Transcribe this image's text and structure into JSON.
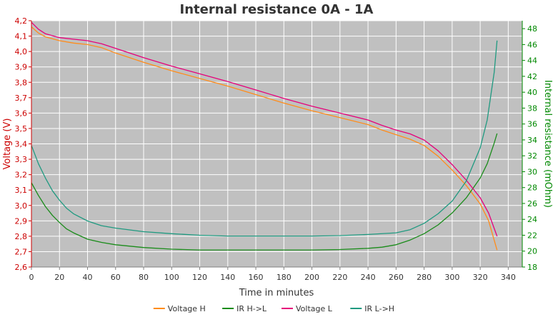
{
  "chart_data": {
    "type": "line",
    "title": "Internal resistance  0A - 1A",
    "xlabel": "Time in minutes",
    "ylabel_left": "Voltage (V)",
    "ylabel_right": "Internal resistance (mOhm)",
    "xlim": [
      0,
      350
    ],
    "ylim_left": [
      2.6,
      4.2
    ],
    "ylim_right": [
      18,
      49
    ],
    "x_ticks": [
      0,
      20,
      40,
      60,
      80,
      100,
      120,
      140,
      160,
      180,
      200,
      220,
      240,
      260,
      280,
      300,
      320,
      340
    ],
    "left_ticks": [
      "2,6",
      "2,7",
      "2,8",
      "2,9",
      "3,0",
      "3,1",
      "3,2",
      "3,3",
      "3,4",
      "3,5",
      "3,6",
      "3,7",
      "3,8",
      "3,9",
      "4,0",
      "4,1",
      "4,2"
    ],
    "right_ticks": [
      18,
      20,
      22,
      24,
      26,
      28,
      30,
      32,
      34,
      36,
      38,
      40,
      42,
      44,
      46,
      48
    ],
    "grid": true,
    "legend_position": "bottom",
    "colors": {
      "left_axis": "#cc0000",
      "right_axis": "#008800",
      "plot_bg": "#c0c0c0",
      "grid": "#ffffff"
    },
    "series": [
      {
        "name": "Voltage H",
        "axis": "left",
        "color": "#ff8c1a",
        "points": [
          [
            0,
            4.16
          ],
          [
            5,
            4.12
          ],
          [
            10,
            4.095
          ],
          [
            20,
            4.07
          ],
          [
            30,
            4.055
          ],
          [
            40,
            4.045
          ],
          [
            50,
            4.025
          ],
          [
            60,
            3.99
          ],
          [
            80,
            3.93
          ],
          [
            100,
            3.875
          ],
          [
            120,
            3.825
          ],
          [
            140,
            3.775
          ],
          [
            160,
            3.72
          ],
          [
            180,
            3.665
          ],
          [
            200,
            3.615
          ],
          [
            220,
            3.57
          ],
          [
            240,
            3.525
          ],
          [
            250,
            3.49
          ],
          [
            260,
            3.46
          ],
          [
            270,
            3.43
          ],
          [
            280,
            3.39
          ],
          [
            290,
            3.32
          ],
          [
            300,
            3.23
          ],
          [
            310,
            3.13
          ],
          [
            320,
            3.01
          ],
          [
            326,
            2.9
          ],
          [
            332,
            2.71
          ]
        ]
      },
      {
        "name": "IR H->L",
        "axis": "right",
        "color": "#1a8c1a",
        "points": [
          [
            0,
            28.6
          ],
          [
            5,
            27
          ],
          [
            10,
            25.6
          ],
          [
            15,
            24.5
          ],
          [
            20,
            23.6
          ],
          [
            25,
            22.8
          ],
          [
            30,
            22.3
          ],
          [
            40,
            21.5
          ],
          [
            50,
            21.1
          ],
          [
            60,
            20.8
          ],
          [
            80,
            20.45
          ],
          [
            100,
            20.25
          ],
          [
            120,
            20.15
          ],
          [
            140,
            20.15
          ],
          [
            160,
            20.15
          ],
          [
            180,
            20.15
          ],
          [
            200,
            20.15
          ],
          [
            220,
            20.2
          ],
          [
            240,
            20.35
          ],
          [
            250,
            20.5
          ],
          [
            260,
            20.8
          ],
          [
            270,
            21.4
          ],
          [
            280,
            22.2
          ],
          [
            290,
            23.3
          ],
          [
            300,
            24.8
          ],
          [
            310,
            26.7
          ],
          [
            320,
            29.2
          ],
          [
            325,
            31
          ],
          [
            330,
            33.6
          ],
          [
            332,
            34.8
          ]
        ]
      },
      {
        "name": "Voltage L",
        "axis": "left",
        "color": "#e6007a",
        "points": [
          [
            0,
            4.19
          ],
          [
            5,
            4.145
          ],
          [
            10,
            4.115
          ],
          [
            20,
            4.09
          ],
          [
            30,
            4.08
          ],
          [
            40,
            4.07
          ],
          [
            50,
            4.05
          ],
          [
            60,
            4.02
          ],
          [
            80,
            3.96
          ],
          [
            100,
            3.905
          ],
          [
            120,
            3.855
          ],
          [
            140,
            3.805
          ],
          [
            160,
            3.75
          ],
          [
            180,
            3.695
          ],
          [
            200,
            3.645
          ],
          [
            220,
            3.6
          ],
          [
            240,
            3.555
          ],
          [
            250,
            3.52
          ],
          [
            260,
            3.49
          ],
          [
            270,
            3.465
          ],
          [
            280,
            3.425
          ],
          [
            290,
            3.355
          ],
          [
            300,
            3.265
          ],
          [
            310,
            3.165
          ],
          [
            320,
            3.05
          ],
          [
            326,
            2.95
          ],
          [
            332,
            2.8
          ]
        ]
      },
      {
        "name": "IR L->H",
        "axis": "right",
        "color": "#1f9a80",
        "points": [
          [
            0,
            33.3
          ],
          [
            5,
            31
          ],
          [
            10,
            29.2
          ],
          [
            15,
            27.6
          ],
          [
            20,
            26.4
          ],
          [
            25,
            25.4
          ],
          [
            30,
            24.7
          ],
          [
            40,
            23.8
          ],
          [
            50,
            23.2
          ],
          [
            60,
            22.9
          ],
          [
            80,
            22.45
          ],
          [
            100,
            22.2
          ],
          [
            120,
            22
          ],
          [
            140,
            21.9
          ],
          [
            160,
            21.9
          ],
          [
            180,
            21.9
          ],
          [
            200,
            21.9
          ],
          [
            220,
            21.95
          ],
          [
            240,
            22.1
          ],
          [
            260,
            22.3
          ],
          [
            270,
            22.7
          ],
          [
            280,
            23.5
          ],
          [
            290,
            24.7
          ],
          [
            300,
            26.3
          ],
          [
            310,
            28.8
          ],
          [
            320,
            33
          ],
          [
            325,
            36.5
          ],
          [
            330,
            42.5
          ],
          [
            332,
            46.5
          ]
        ]
      }
    ]
  }
}
